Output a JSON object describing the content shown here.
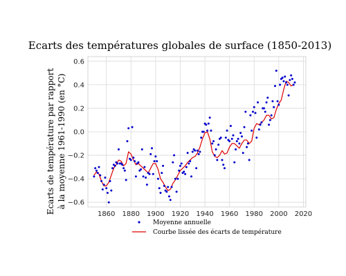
{
  "chart_data": {
    "type": "scatter",
    "title": "Ecarts des températures globales de surface (1850-2013)",
    "xlabel": "",
    "ylabel_lines": [
      "Ecarts de température par rapport",
      "à la moyenne 1961-1990 (en °C)"
    ],
    "xlim": [
      1845,
      2022
    ],
    "ylim": [
      -0.64,
      0.64
    ],
    "xticks": [
      1860,
      1880,
      1900,
      1920,
      1940,
      1960,
      1980,
      2000,
      2020
    ],
    "yticks": [
      -0.6,
      -0.4,
      -0.2,
      0.0,
      0.2,
      0.4,
      0.6
    ],
    "ytick_labels": [
      "−0.6",
      "−0.4",
      "−0.2",
      "0.0",
      "0.2",
      "0.4",
      "0.6"
    ],
    "grid": true,
    "legend_position": "below",
    "colors": {
      "points": "#0000cc",
      "smooth": "#dd0000"
    },
    "series": [
      {
        "name": "Moyenne annuelle",
        "type": "scatter",
        "x": [
          1850,
          1851,
          1852,
          1853,
          1854,
          1855,
          1856,
          1857,
          1858,
          1859,
          1860,
          1861,
          1862,
          1863,
          1864,
          1865,
          1866,
          1867,
          1868,
          1869,
          1870,
          1871,
          1872,
          1873,
          1874,
          1875,
          1876,
          1877,
          1878,
          1879,
          1880,
          1881,
          1882,
          1883,
          1884,
          1885,
          1886,
          1887,
          1888,
          1889,
          1890,
          1891,
          1892,
          1893,
          1894,
          1895,
          1896,
          1897,
          1898,
          1899,
          1900,
          1901,
          1902,
          1903,
          1904,
          1905,
          1906,
          1907,
          1908,
          1909,
          1910,
          1911,
          1912,
          1913,
          1914,
          1915,
          1916,
          1917,
          1918,
          1919,
          1920,
          1921,
          1922,
          1923,
          1924,
          1925,
          1926,
          1927,
          1928,
          1929,
          1930,
          1931,
          1932,
          1933,
          1934,
          1935,
          1936,
          1937,
          1938,
          1939,
          1940,
          1941,
          1942,
          1943,
          1944,
          1945,
          1946,
          1947,
          1948,
          1949,
          1950,
          1951,
          1952,
          1953,
          1954,
          1955,
          1956,
          1957,
          1958,
          1959,
          1960,
          1961,
          1962,
          1963,
          1964,
          1965,
          1966,
          1967,
          1968,
          1969,
          1970,
          1971,
          1972,
          1973,
          1974,
          1975,
          1976,
          1977,
          1978,
          1979,
          1980,
          1981,
          1982,
          1983,
          1984,
          1985,
          1986,
          1987,
          1988,
          1989,
          1990,
          1991,
          1992,
          1993,
          1994,
          1995,
          1996,
          1997,
          1998,
          1999,
          2000,
          2001,
          2002,
          2003,
          2004,
          2005,
          2006,
          2007,
          2008,
          2009,
          2010,
          2011,
          2012,
          2013
        ],
        "y": [
          -0.38,
          -0.31,
          -0.33,
          -0.35,
          -0.3,
          -0.37,
          -0.42,
          -0.49,
          -0.45,
          -0.39,
          -0.48,
          -0.52,
          -0.6,
          -0.42,
          -0.5,
          -0.31,
          -0.28,
          -0.29,
          -0.26,
          -0.27,
          -0.15,
          -0.27,
          -0.27,
          -0.28,
          -0.31,
          -0.33,
          -0.41,
          -0.08,
          0.03,
          -0.23,
          -0.24,
          0.04,
          -0.22,
          -0.25,
          -0.38,
          -0.27,
          -0.26,
          -0.33,
          -0.32,
          -0.15,
          -0.38,
          -0.3,
          -0.39,
          -0.45,
          -0.35,
          -0.36,
          -0.19,
          -0.14,
          -0.36,
          -0.25,
          -0.21,
          -0.25,
          -0.4,
          -0.48,
          -0.52,
          -0.35,
          -0.29,
          -0.46,
          -0.5,
          -0.51,
          -0.47,
          -0.55,
          -0.58,
          -0.47,
          -0.26,
          -0.2,
          -0.4,
          -0.51,
          -0.4,
          -0.33,
          -0.29,
          -0.27,
          -0.35,
          -0.34,
          -0.36,
          -0.3,
          -0.18,
          -0.27,
          -0.25,
          -0.38,
          -0.17,
          -0.15,
          -0.16,
          -0.31,
          -0.16,
          -0.19,
          -0.17,
          -0.05,
          0.0,
          0.0,
          0.07,
          0.06,
          0.01,
          0.07,
          0.12,
          0.01,
          -0.1,
          -0.08,
          -0.2,
          -0.15,
          -0.24,
          -0.11,
          -0.06,
          -0.05,
          -0.24,
          -0.28,
          -0.31,
          -0.05,
          0.01,
          -0.07,
          -0.08,
          0.05,
          -0.06,
          -0.03,
          -0.26,
          -0.15,
          -0.08,
          -0.06,
          -0.1,
          -0.01,
          -0.04,
          -0.18,
          0.04,
          0.17,
          -0.13,
          -0.1,
          -0.24,
          0.14,
          0.01,
          0.17,
          0.21,
          0.16,
          -0.05,
          0.25,
          0.02,
          0.06,
          0.08,
          0.2,
          0.2,
          0.17,
          0.25,
          0.29,
          0.06,
          0.1,
          0.14,
          0.26,
          0.21,
          0.39,
          0.52,
          0.26,
          0.23,
          0.4,
          0.45,
          0.46,
          0.43,
          0.47,
          0.42,
          0.4,
          0.31,
          0.44,
          0.48,
          0.45,
          0.4,
          0.42
        ],
        "marker": "point"
      },
      {
        "name": "Courbe lissée des écarts de température",
        "type": "line",
        "x": [
          1850,
          1852,
          1854,
          1856,
          1858,
          1860,
          1862,
          1864,
          1866,
          1868,
          1870,
          1872,
          1874,
          1876,
          1878,
          1880,
          1882,
          1884,
          1886,
          1888,
          1890,
          1892,
          1894,
          1896,
          1898,
          1900,
          1902,
          1904,
          1906,
          1908,
          1910,
          1912,
          1914,
          1916,
          1918,
          1920,
          1922,
          1924,
          1926,
          1928,
          1930,
          1932,
          1934,
          1936,
          1938,
          1940,
          1942,
          1944,
          1946,
          1948,
          1950,
          1952,
          1954,
          1956,
          1958,
          1960,
          1962,
          1964,
          1966,
          1968,
          1970,
          1972,
          1974,
          1976,
          1978,
          1980,
          1982,
          1984,
          1986,
          1988,
          1990,
          1992,
          1994,
          1996,
          1998,
          2000,
          2002,
          2004,
          2006,
          2008,
          2010,
          2012
        ],
        "y": [
          -0.37,
          -0.34,
          -0.36,
          -0.42,
          -0.46,
          -0.46,
          -0.43,
          -0.37,
          -0.31,
          -0.28,
          -0.24,
          -0.25,
          -0.29,
          -0.27,
          -0.17,
          -0.19,
          -0.24,
          -0.28,
          -0.27,
          -0.29,
          -0.31,
          -0.33,
          -0.35,
          -0.31,
          -0.27,
          -0.27,
          -0.32,
          -0.4,
          -0.43,
          -0.47,
          -0.5,
          -0.49,
          -0.44,
          -0.41,
          -0.37,
          -0.33,
          -0.31,
          -0.29,
          -0.26,
          -0.24,
          -0.22,
          -0.21,
          -0.18,
          -0.13,
          -0.06,
          -0.01,
          0.0,
          -0.06,
          -0.17,
          -0.21,
          -0.22,
          -0.2,
          -0.16,
          -0.19,
          -0.18,
          -0.13,
          -0.1,
          -0.1,
          -0.12,
          -0.14,
          -0.1,
          -0.07,
          -0.07,
          -0.1,
          -0.08,
          0.03,
          0.07,
          0.06,
          0.08,
          0.1,
          0.14,
          0.14,
          0.11,
          0.12,
          0.19,
          0.24,
          0.27,
          0.36,
          0.43,
          0.42,
          0.39,
          0.4
        ]
      }
    ]
  }
}
